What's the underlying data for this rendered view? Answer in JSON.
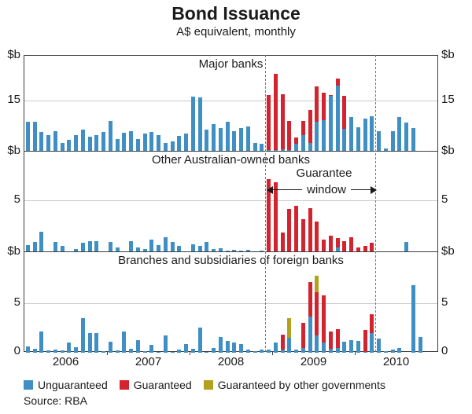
{
  "header": {
    "title": "Bond Issuance",
    "subtitle": "A$ equivalent, monthly"
  },
  "source": "Source: RBA",
  "colors": {
    "unguaranteed": "#3f8fc5",
    "guaranteed": "#d2232e",
    "other_governments": "#b3a01e",
    "gridline": "#c9c9c9",
    "axis": "#3d3d3d",
    "dashed_line": "#7b7b7b"
  },
  "legend": [
    {
      "label": "Unguaranteed",
      "key": "unguaranteed",
      "color": "#3f8fc5"
    },
    {
      "label": "Guaranteed",
      "key": "guaranteed",
      "color": "#d2232e"
    },
    {
      "label": "Guaranteed by other governments",
      "key": "other_governments",
      "color": "#b3a01e"
    }
  ],
  "annotation": {
    "line1": "Guarantee",
    "line2": "window"
  },
  "guarantee_window": {
    "start_month_index": 35,
    "end_month_index": 51
  },
  "axis": {
    "x_start_month": "2006-01",
    "x_end_month": "2010-12",
    "years": [
      "2006",
      "2007",
      "2008",
      "2009",
      "2010"
    ],
    "year_tick_month_indices": [
      12,
      24,
      36,
      48
    ],
    "unit_label": "$b",
    "zero_label": "0"
  },
  "chart_data": [
    {
      "type": "bar",
      "stacked": true,
      "title": "Major banks",
      "unit_label": "$b",
      "ylim": [
        0,
        28
      ],
      "gridline_value": 15,
      "gridline_label": "15",
      "series": [
        {
          "name": "Unguaranteed",
          "key": "unguaranteed",
          "values": [
            8.5,
            8.4,
            5.5,
            4.7,
            5.8,
            2.2,
            3.2,
            4.5,
            6.2,
            4.2,
            4.7,
            5.5,
            8.8,
            3.5,
            5.3,
            5.7,
            3.4,
            5.1,
            5.5,
            4.7,
            2.4,
            2.8,
            4.3,
            5.1,
            15.8,
            15.6,
            6.2,
            7.8,
            6.6,
            8.5,
            5.8,
            6.6,
            7.2,
            2.4,
            2.0,
            0.3,
            0.3,
            0.5,
            0.3,
            2.0,
            4.5,
            2.2,
            8.4,
            9.0,
            16.0,
            19.0,
            6.5,
            9.8,
            7.0,
            9.4,
            10.0,
            5.7,
            0.7,
            5.8,
            9.9,
            8.3,
            6.6,
            0,
            0,
            0
          ]
        },
        {
          "name": "Guaranteed",
          "key": "guaranteed",
          "values": [
            0,
            0,
            0,
            0,
            0,
            0,
            0,
            0,
            0,
            0,
            0,
            0,
            0,
            0,
            0,
            0,
            0,
            0,
            0,
            0,
            0,
            0,
            0,
            0,
            0,
            0,
            0,
            0,
            0,
            0,
            0,
            0,
            0,
            0,
            0,
            16.0,
            22.2,
            16.1,
            8.4,
            1.9,
            4.2,
            9.8,
            10.4,
            7.9,
            0.4,
            2.1,
            9.6,
            0,
            0,
            0,
            0,
            0,
            0,
            0,
            0,
            0,
            0,
            0,
            0,
            0
          ]
        }
      ]
    },
    {
      "type": "bar",
      "stacked": true,
      "title": "Other Australian-owned banks",
      "unit_label": "$b",
      "ylim": [
        0,
        9.7
      ],
      "gridline_value": 5,
      "gridline_label": "5",
      "series": [
        {
          "name": "Unguaranteed",
          "key": "unguaranteed",
          "values": [
            0.6,
            0.9,
            1.9,
            0,
            0.9,
            0.5,
            0,
            0.2,
            0.8,
            1.0,
            1.0,
            0,
            0.9,
            0.35,
            0,
            1.0,
            0.4,
            0.25,
            1.1,
            0.6,
            1.4,
            0.9,
            0.5,
            0,
            0.7,
            0.5,
            0.9,
            0.2,
            0.3,
            0.1,
            0.15,
            0.1,
            0.15,
            0,
            0.1,
            0,
            0,
            0,
            0,
            0,
            0,
            0,
            0,
            0,
            0,
            0.4,
            0,
            0,
            0,
            0,
            0,
            0,
            0,
            0,
            0,
            0.9,
            0,
            0,
            0,
            0
          ]
        },
        {
          "name": "Guaranteed",
          "key": "guaranteed",
          "values": [
            0,
            0,
            0,
            0,
            0,
            0,
            0,
            0,
            0,
            0,
            0,
            0,
            0,
            0,
            0,
            0,
            0,
            0,
            0,
            0,
            0,
            0,
            0,
            0,
            0,
            0,
            0,
            0,
            0,
            0,
            0,
            0,
            0,
            0,
            0,
            7.0,
            6.7,
            1.8,
            4.1,
            4.4,
            3.1,
            4.15,
            2.9,
            1.15,
            1.5,
            0.9,
            1.0,
            1.4,
            0.35,
            0.5,
            0.85,
            0,
            0,
            0,
            0,
            0,
            0,
            0,
            0,
            0
          ]
        }
      ]
    },
    {
      "type": "bar",
      "stacked": true,
      "title": "Branches and subsidiaries of foreign banks",
      "unit_label": "$b",
      "bottom_label": "0",
      "ylim": [
        0,
        10.1
      ],
      "gridline_value": 5,
      "gridline_label": "5",
      "series": [
        {
          "name": "Unguaranteed",
          "key": "unguaranteed",
          "values": [
            0.6,
            0.4,
            2.1,
            0.25,
            0.3,
            0.2,
            1.0,
            0.55,
            3.5,
            2.0,
            2.0,
            0.15,
            1.1,
            0.2,
            2.1,
            0.4,
            1.25,
            0.15,
            0.8,
            0.05,
            1.7,
            0.1,
            0.3,
            0.9,
            0.4,
            2.5,
            0.1,
            0.45,
            1.6,
            1.2,
            1.0,
            0.85,
            0.3,
            0.15,
            0.3,
            0.3,
            1.0,
            0.35,
            1.5,
            0.3,
            0.5,
            3.6,
            1.7,
            1.0,
            0.4,
            0.5,
            1.1,
            1.3,
            1.2,
            0.1,
            2.0,
            1.4,
            0.15,
            0.3,
            0.5,
            0,
            6.8,
            1.55,
            0,
            0
          ]
        },
        {
          "name": "Guaranteed",
          "key": "guaranteed",
          "values": [
            0,
            0,
            0,
            0,
            0,
            0,
            0,
            0,
            0,
            0,
            0,
            0,
            0,
            0,
            0,
            0,
            0,
            0,
            0,
            0,
            0,
            0,
            0,
            0,
            0,
            0,
            0,
            0,
            0,
            0,
            0,
            0,
            0,
            0,
            0,
            0,
            0,
            1.45,
            0,
            0,
            2.5,
            3.5,
            4.4,
            4.8,
            1.7,
            1.9,
            0,
            0,
            0,
            2.2,
            1.9,
            0,
            0,
            0,
            0,
            0,
            0,
            0,
            0,
            0
          ]
        },
        {
          "name": "Guaranteed by other governments",
          "key": "other_governments",
          "values": [
            0,
            0,
            0,
            0,
            0,
            0,
            0,
            0,
            0,
            0,
            0,
            0,
            0,
            0,
            0,
            0,
            0,
            0,
            0,
            0,
            0,
            0,
            0,
            0,
            0,
            0,
            0,
            0,
            0,
            0,
            0,
            0,
            0,
            0,
            0,
            0,
            0,
            0,
            2.0,
            0,
            0,
            0,
            1.6,
            0,
            0,
            0,
            0,
            0,
            0,
            0,
            0,
            0,
            0,
            0,
            0,
            0,
            0,
            0,
            0,
            0
          ]
        }
      ]
    }
  ]
}
